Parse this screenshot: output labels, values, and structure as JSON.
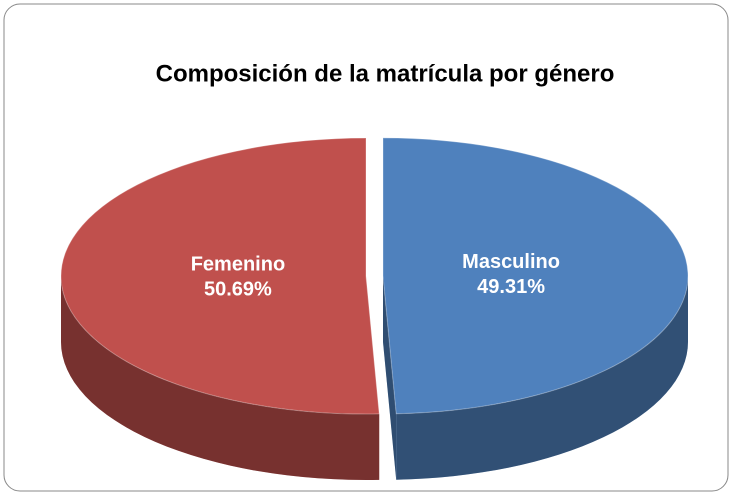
{
  "chart_data": {
    "type": "pie",
    "title": "Composición de la matrícula por género",
    "categories": [
      "Masculino",
      "Femenino"
    ],
    "values": [
      49.31,
      50.69
    ],
    "value_labels": [
      "49.31%",
      "50.69%"
    ],
    "colors": [
      "#4f81bd",
      "#c0504d"
    ]
  }
}
